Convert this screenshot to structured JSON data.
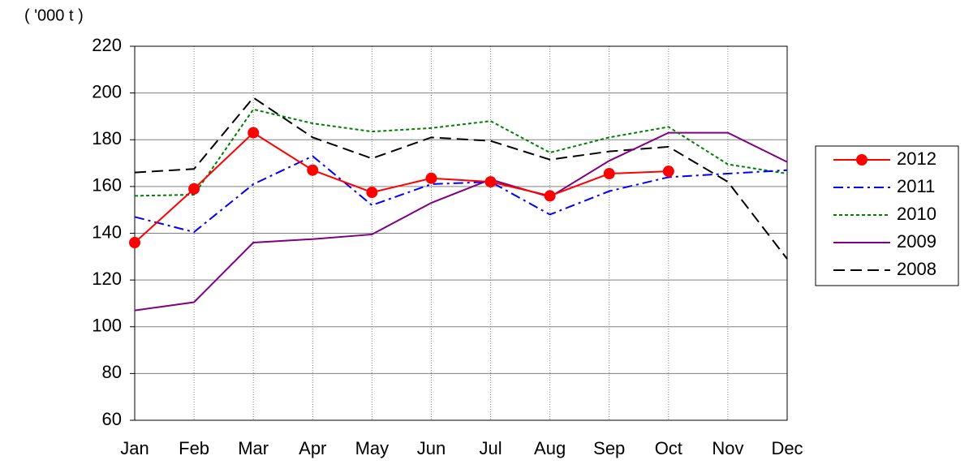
{
  "chart_data": {
    "type": "line",
    "y_label": "( '000 t )",
    "categories": [
      "Jan",
      "Feb",
      "Mar",
      "Apr",
      "May",
      "Jun",
      "Jul",
      "Aug",
      "Sep",
      "Oct",
      "Nov",
      "Dec"
    ],
    "series": [
      {
        "name": "2012",
        "color": "#ff0000",
        "dash": "solid",
        "marker": true,
        "values": [
          136,
          159,
          183,
          167,
          157.5,
          163.5,
          162,
          156,
          165.5,
          166.5,
          null,
          null
        ]
      },
      {
        "name": "2011",
        "color": "#0000ff",
        "dash": "dashdot",
        "marker": false,
        "values": [
          147,
          140.5,
          161,
          173,
          152,
          161,
          162,
          148,
          158,
          164,
          165.5,
          167
        ]
      },
      {
        "name": "2010",
        "color": "#008000",
        "dash": "dotted",
        "marker": false,
        "values": [
          156,
          156.5,
          193,
          187,
          183.5,
          185,
          188,
          174.5,
          181,
          185.5,
          169.5,
          165.5
        ]
      },
      {
        "name": "2009",
        "color": "#800080",
        "dash": "solid",
        "marker": false,
        "values": [
          107,
          110.5,
          136,
          137.5,
          139.5,
          153,
          163,
          155.5,
          171,
          183,
          183,
          170.5
        ]
      },
      {
        "name": "2008",
        "color": "#000000",
        "dash": "dashed",
        "marker": false,
        "values": [
          166,
          167.5,
          198,
          181,
          172,
          181,
          179.5,
          171.5,
          175,
          177,
          162,
          129
        ]
      }
    ],
    "ylim": [
      60,
      220
    ],
    "yticks": [
      60,
      80,
      100,
      120,
      140,
      160,
      180,
      200,
      220
    ],
    "grid": true,
    "legend": "right"
  }
}
